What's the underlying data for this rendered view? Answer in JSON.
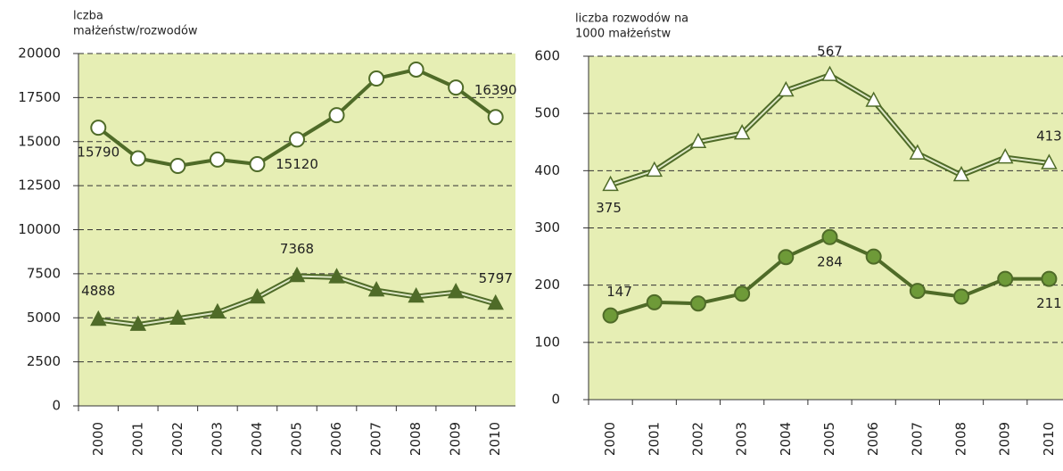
{
  "chart_data": [
    {
      "type": "line",
      "ylabel": [
        "lczba",
        "małżeństw/rozwodów"
      ],
      "categories": [
        "2000",
        "2001",
        "2002",
        "2003",
        "2004",
        "2005",
        "2006",
        "2007",
        "2008",
        "2009",
        "2010"
      ],
      "ylim": [
        0,
        20000
      ],
      "yticks": [
        0,
        2500,
        5000,
        7500,
        10000,
        12500,
        15000,
        17500,
        20000
      ],
      "grid": true,
      "background": "#e6eeb4",
      "series": [
        {
          "color": "#4f6b28",
          "marker": "circle",
          "marker_fill": "#ffffff",
          "line_style": "solid",
          "values": [
            15790,
            14050,
            13620,
            13980,
            13720,
            15120,
            16500,
            18580,
            19090,
            18070,
            16390
          ],
          "data_labels": [
            0,
            5,
            10
          ]
        },
        {
          "color": "#4f6b28",
          "marker": "triangle",
          "marker_fill": "#4f6b28",
          "line_style": "double",
          "values": [
            4888,
            4600,
            4950,
            5300,
            6150,
            7368,
            7300,
            6550,
            6200,
            6450,
            5797
          ],
          "data_labels": [
            0,
            5,
            10
          ]
        }
      ]
    },
    {
      "type": "line",
      "ylabel": [
        "liczba rozwodów na",
        "1000 małżeństw"
      ],
      "categories": [
        "2000",
        "2001",
        "2002",
        "2003",
        "2004",
        "2005",
        "2006",
        "2007",
        "2008",
        "2009",
        "2010"
      ],
      "ylim": [
        0,
        600
      ],
      "yticks": [
        0,
        100,
        200,
        300,
        400,
        500,
        600
      ],
      "grid": true,
      "background": "#e6eeb4",
      "series": [
        {
          "color": "#4f6b28",
          "marker": "triangle",
          "marker_fill": "#ffffff",
          "line_style": "double",
          "values": [
            375,
            400,
            450,
            465,
            540,
            567,
            522,
            430,
            392,
            423,
            413
          ],
          "data_labels": [
            0,
            5,
            10
          ]
        },
        {
          "color": "#4f6b28",
          "marker": "circle",
          "marker_fill": "#6e9a38",
          "line_style": "solid",
          "values": [
            147,
            170,
            168,
            185,
            249,
            284,
            250,
            190,
            180,
            211,
            211
          ],
          "data_labels": [
            0,
            5,
            10
          ]
        }
      ]
    }
  ]
}
